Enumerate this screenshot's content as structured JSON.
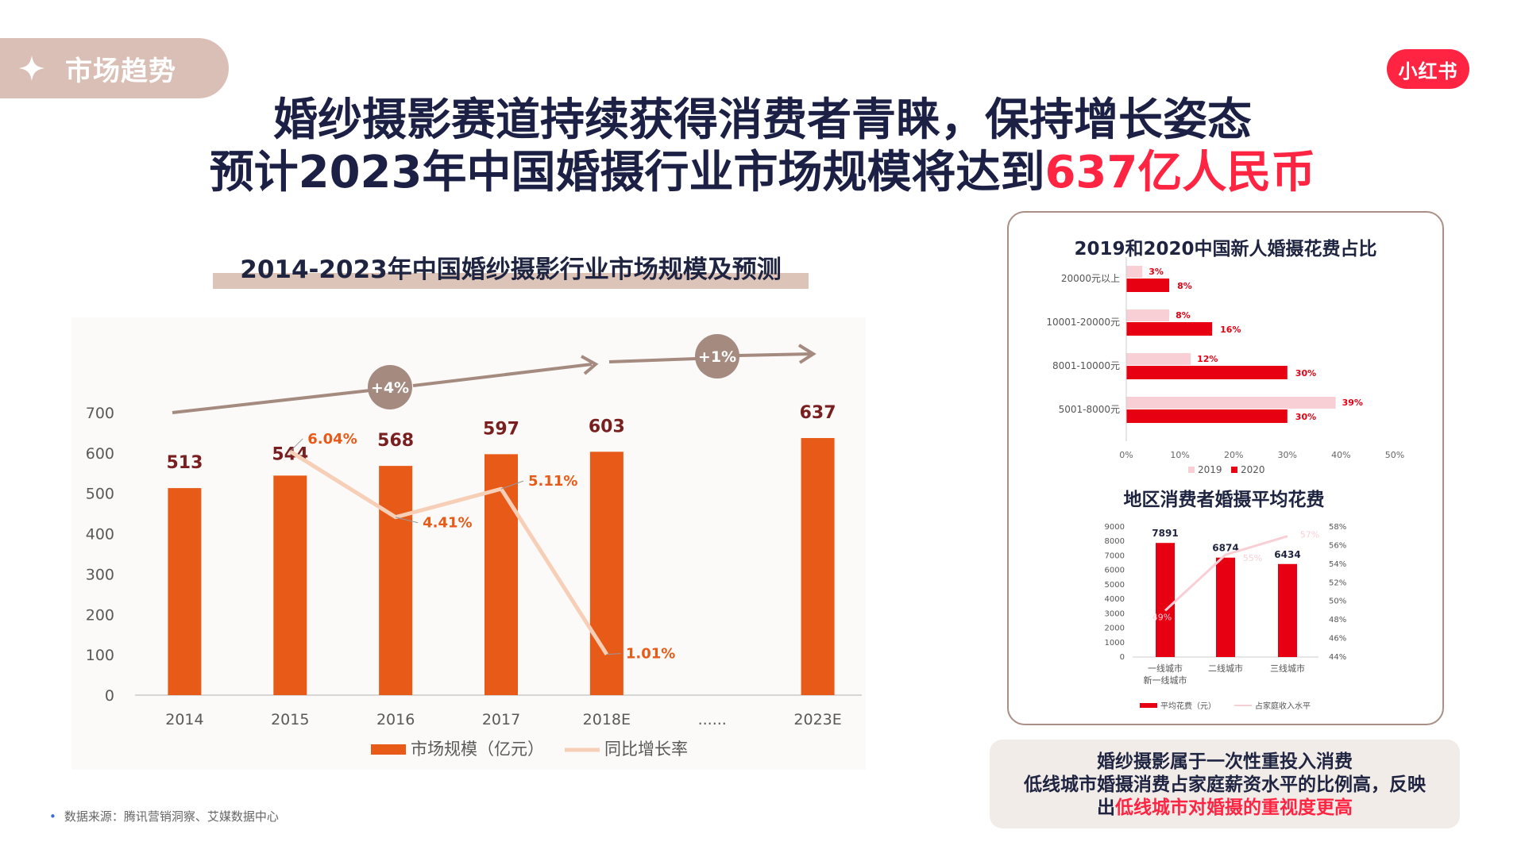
{
  "section_label": "市场趋势",
  "brand": "小红书",
  "headline": {
    "line1": "婚纱摄影赛道持续获得消费者青睐，保持增长姿态",
    "line2_prefix": "预计2023年中国婚摄行业市场规模将达到",
    "line2_highlight": "637亿人民币"
  },
  "colors": {
    "accent_red": "#ff2442",
    "bar_orange": "#e85a18",
    "growth_line": "#f6cfb6",
    "tag_bg": "#d9bfb5",
    "dark_red": "#e60012",
    "light_pink": "#f9cfd6"
  },
  "source": "数据来源：腾讯营销洞察、艾媒数据中心",
  "summary": {
    "line1": "婚纱摄影属于一次性重投入消费",
    "line2": "低线城市婚摄消费占家庭薪资水平的比例高，反映",
    "line3_prefix": "出",
    "line3_highlight": "低线城市对婚摄的重视度更高"
  },
  "chart_data": [
    {
      "type": "bar",
      "title": "2014-2023年中国婚纱摄影行业市场规模及预测",
      "categories": [
        "2014",
        "2015",
        "2016",
        "2017",
        "2018E",
        "......",
        "2023E"
      ],
      "series": [
        {
          "name": "市场规模（亿元）",
          "type": "bar",
          "values": [
            513,
            544,
            568,
            597,
            603,
            null,
            637
          ],
          "labels": [
            "513",
            "544",
            "568",
            "597",
            "603",
            "",
            "637"
          ]
        },
        {
          "name": "同比增长率",
          "type": "line",
          "axis": "right",
          "values": [
            null,
            0.0604,
            0.0441,
            0.0511,
            0.0101,
            null,
            null
          ],
          "labels": [
            "",
            "6.04%",
            "4.41%",
            "5.11%",
            "1.01%",
            "",
            ""
          ]
        }
      ],
      "ylim": [
        0,
        700
      ],
      "yticks": [
        "0",
        "100",
        "200",
        "300",
        "400",
        "500",
        "600",
        "700"
      ],
      "y2lim": [
        0,
        0.07
      ],
      "y2ticks": [
        "0",
        "0.01",
        "0.02",
        "0.03",
        "0.04",
        "0.05",
        "0.06",
        "0.07"
      ],
      "annotations": [
        "+4%",
        "+1%"
      ],
      "legend": "bottom"
    },
    {
      "type": "bar",
      "orientation": "horizontal",
      "title": "2019和2020中国新人婚摄花费占比",
      "categories": [
        "20000元以上",
        "10001-20000元",
        "8001-10000元",
        "5001-8000元"
      ],
      "series": [
        {
          "name": "2019",
          "values": [
            3,
            8,
            12,
            39
          ],
          "labels": [
            "3%",
            "8%",
            "12%",
            "39%"
          ]
        },
        {
          "name": "2020",
          "values": [
            8,
            16,
            30,
            30
          ],
          "labels": [
            "8%",
            "16%",
            "30%",
            "30%"
          ]
        }
      ],
      "xlim": [
        0,
        50
      ],
      "xticks": [
        "0%",
        "10%",
        "20%",
        "30%",
        "40%",
        "50%"
      ],
      "legend": "bottom"
    },
    {
      "type": "bar",
      "title": "地区消费者婚摄平均花费",
      "categories": [
        "一线城市\n新一线城市",
        "二线城市",
        "三线城市"
      ],
      "series": [
        {
          "name": "平均花费（元）",
          "type": "bar",
          "values": [
            7891,
            6874,
            6434
          ],
          "labels": [
            "7891",
            "6874",
            "6434"
          ]
        },
        {
          "name": "占家庭收入水平",
          "type": "line",
          "axis": "right",
          "values": [
            49,
            55,
            57
          ],
          "labels": [
            "49%",
            "55%",
            "57%"
          ]
        }
      ],
      "ylim": [
        0,
        9000
      ],
      "yticks": [
        "0",
        "1000",
        "2000",
        "3000",
        "4000",
        "5000",
        "6000",
        "7000",
        "8000",
        "9000"
      ],
      "y2lim": [
        44,
        58
      ],
      "y2ticks": [
        "44%",
        "46%",
        "48%",
        "50%",
        "52%",
        "54%",
        "56%",
        "58%"
      ],
      "legend": "bottom"
    }
  ]
}
